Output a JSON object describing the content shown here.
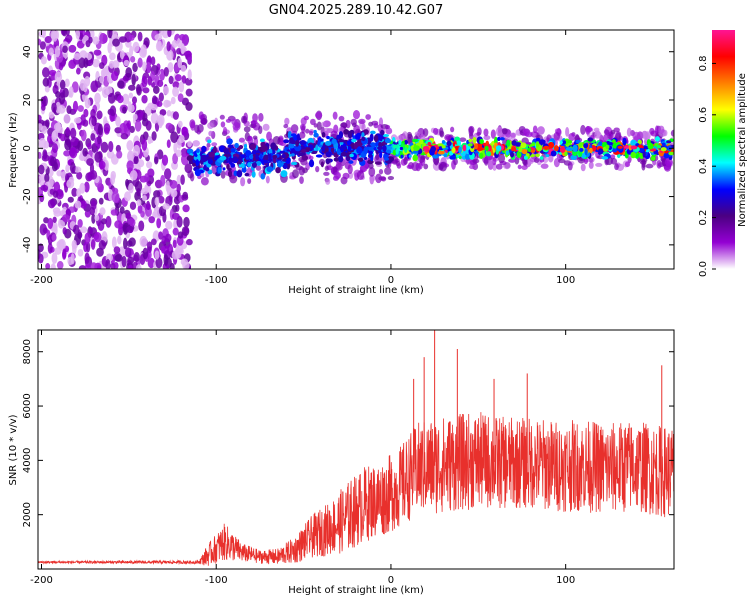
{
  "figure_title": "GN04.2025.289.10.42.G07",
  "chart_data": [
    {
      "type": "heatmap",
      "title": "GN04.2025.289.10.42.G07",
      "xlabel": "Height of straight line (km)",
      "ylabel": "Frequency (Hz)",
      "xlim": [
        -202,
        162
      ],
      "ylim": [
        -50,
        49
      ],
      "xticks": [
        -200,
        -100,
        0,
        100
      ],
      "yticks": [
        -40,
        -20,
        0,
        20,
        40
      ],
      "xtick_labels": [
        "-200",
        "-100",
        "0",
        "100"
      ],
      "ytick_labels": [
        "-40",
        "-20",
        "0",
        "20",
        "40"
      ],
      "colorbar": {
        "label": "Normalized spectral amplitude",
        "range": [
          0.0,
          0.93
        ],
        "ticks": [
          0.0,
          0.2,
          0.4,
          0.6,
          0.8
        ],
        "tick_labels": [
          "0.0",
          "0.2",
          "0.4",
          "0.6",
          "0.8"
        ],
        "colors": [
          "#ffffff",
          "#9400d3",
          "#4b0082",
          "#0000ff",
          "#00ffff",
          "#00ff00",
          "#ffff00",
          "#ff7f00",
          "#ff0000",
          "#ff1493"
        ]
      },
      "description_regions": [
        {
          "x_range": [
            -202,
            -115
          ],
          "freq_range": [
            -50,
            49
          ],
          "amplitude": 0.1
        },
        {
          "x_range": [
            -115,
            162
          ],
          "freq_center": 0,
          "freq_halfwidth": 8,
          "amplitude_range": [
            0.15,
            0.9
          ]
        }
      ]
    },
    {
      "type": "line",
      "xlabel": "Height of straight line (km)",
      "ylabel": "SNR (10 * v/v)",
      "xlim": [
        -202,
        162
      ],
      "ylim": [
        0,
        8800
      ],
      "xticks": [
        -200,
        -100,
        0,
        100
      ],
      "yticks": [
        2000,
        4000,
        6000,
        8000
      ],
      "xtick_labels": [
        "-200",
        "-100",
        "0",
        "100"
      ],
      "ytick_labels": [
        "2000",
        "4000",
        "6000",
        "8000"
      ],
      "line_color": "#e8302c",
      "envelope": {
        "x": [
          -202,
          -110,
          -105,
          -95,
          -85,
          -75,
          -65,
          -55,
          -45,
          -35,
          -25,
          -15,
          -5,
          5,
          15,
          25,
          35,
          50,
          65,
          80,
          95,
          110,
          125,
          140,
          155,
          162
        ],
        "mean": [
          250,
          250,
          500,
          1000,
          600,
          450,
          450,
          700,
          1200,
          1500,
          1900,
          2400,
          2600,
          3000,
          3700,
          3800,
          3900,
          4000,
          3900,
          3900,
          3800,
          3800,
          3700,
          3800,
          3600,
          3600
        ],
        "spread": [
          40,
          60,
          400,
          700,
          350,
          250,
          300,
          500,
          800,
          1000,
          1300,
          1400,
          1400,
          1500,
          1700,
          1800,
          1800,
          1800,
          1700,
          1700,
          1700,
          1700,
          1700,
          1700,
          1700,
          1700
        ]
      },
      "spikes": [
        {
          "x": 25,
          "y": 8800
        },
        {
          "x": 38,
          "y": 8100
        },
        {
          "x": 19,
          "y": 7800
        },
        {
          "x": 155,
          "y": 7500
        },
        {
          "x": 78,
          "y": 7200
        },
        {
          "x": 59,
          "y": 7000
        },
        {
          "x": 13,
          "y": 7000
        }
      ]
    }
  ]
}
